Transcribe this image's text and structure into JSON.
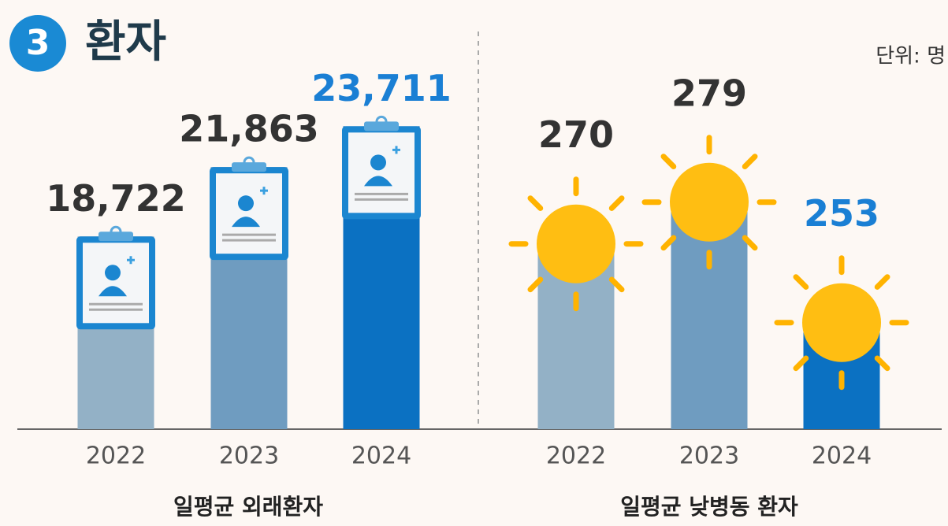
{
  "header": {
    "badge": "3",
    "title": "환자",
    "unit": "단위: 명"
  },
  "chart_data": [
    {
      "type": "bar",
      "title": "일평균 외래환자",
      "categories": [
        "2022",
        "2023",
        "2024"
      ],
      "values": [
        18722,
        21863,
        23711
      ],
      "value_labels": [
        "18,722",
        "21,863",
        "23,711"
      ],
      "colors": [
        "#93b1c6",
        "#6f9cc0",
        "#0b71c2"
      ],
      "label_colors": [
        "#333333",
        "#333333",
        "#1a7fd4"
      ],
      "ylim": [
        10000,
        28000
      ]
    },
    {
      "type": "bar",
      "title": "일평균 낮병동 환자",
      "categories": [
        "2022",
        "2023",
        "2024"
      ],
      "values": [
        270,
        279,
        253
      ],
      "value_labels": [
        "270",
        "279",
        "253"
      ],
      "colors": [
        "#93b1c6",
        "#6f9cc0",
        "#0b71c2"
      ],
      "label_colors": [
        "#333333",
        "#333333",
        "#1a7fd4"
      ],
      "ylim": [
        230,
        315
      ]
    }
  ]
}
